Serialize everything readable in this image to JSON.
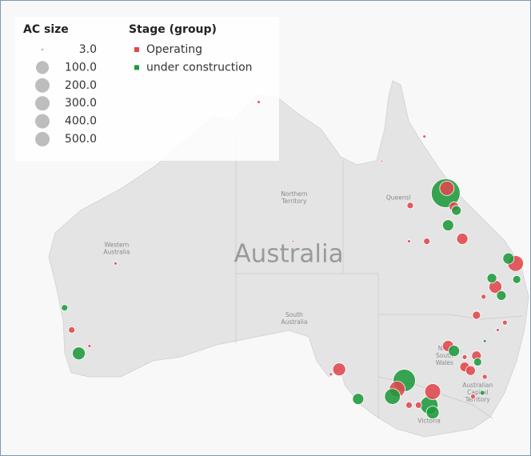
{
  "legend": {
    "size_title": "AC size",
    "sizes": [
      {
        "value": 3,
        "label": "3.0"
      },
      {
        "value": 100,
        "label": "100.0"
      },
      {
        "value": 200,
        "label": "200.0"
      },
      {
        "value": 300,
        "label": "300.0"
      },
      {
        "value": 400,
        "label": "400.0"
      },
      {
        "value": 500,
        "label": "500.0"
      }
    ],
    "stage_title": "Stage (group)",
    "stages": [
      {
        "name": "Operating",
        "color": "#e0474c"
      },
      {
        "name": "under construction",
        "color": "#1f9a3c"
      }
    ]
  },
  "map_label": "Australia",
  "places": [
    {
      "lines": [
        "Western",
        "Australia"
      ],
      "lon": 118.9,
      "lat": -24.0
    },
    {
      "lines": [
        "Northern",
        "Territory"
      ],
      "lon": 133.9,
      "lat": -19.9
    },
    {
      "lines": [
        "Queensl"
      ],
      "lon": 142.7,
      "lat": -19.9
    },
    {
      "lines": [
        "South",
        "Australia"
      ],
      "lon": 133.9,
      "lat": -29.7
    },
    {
      "lines": [
        "New",
        "South",
        "Wales"
      ],
      "lon": 146.6,
      "lat": -32.7
    },
    {
      "lines": [
        "Australian",
        "Capital",
        "Territory"
      ],
      "lon": 149.4,
      "lat": -35.7
    },
    {
      "lines": [
        "Victoria"
      ],
      "lon": 145.3,
      "lat": -38.0
    }
  ],
  "points": [
    {
      "lon": 146.7,
      "lat": -19.5,
      "size": 500,
      "stage": "under construction"
    },
    {
      "lon": 146.8,
      "lat": -19.1,
      "size": 125,
      "stage": "Operating"
    },
    {
      "lon": 147.4,
      "lat": -20.6,
      "size": 56,
      "stage": "Operating"
    },
    {
      "lon": 147.6,
      "lat": -20.9,
      "size": 56,
      "stage": "under construction"
    },
    {
      "lon": 146.9,
      "lat": -22.1,
      "size": 76,
      "stage": "under construction"
    },
    {
      "lon": 148.1,
      "lat": -23.2,
      "size": 76,
      "stage": "Operating"
    },
    {
      "lon": 143.7,
      "lat": -20.5,
      "size": 25,
      "stage": "Operating"
    },
    {
      "lon": 145.1,
      "lat": -23.4,
      "size": 25,
      "stage": "Operating"
    },
    {
      "lon": 143.6,
      "lat": -23.4,
      "size": 6,
      "stage": "Operating"
    },
    {
      "lon": 144.9,
      "lat": -14.9,
      "size": 6,
      "stage": "Operating"
    },
    {
      "lon": 152.0,
      "lat": -24.8,
      "size": 76,
      "stage": "under construction"
    },
    {
      "lon": 152.6,
      "lat": -25.2,
      "size": 150,
      "stage": "Operating"
    },
    {
      "lon": 150.6,
      "lat": -26.4,
      "size": 56,
      "stage": "under construction"
    },
    {
      "lon": 150.9,
      "lat": -27.1,
      "size": 100,
      "stage": "Operating"
    },
    {
      "lon": 151.4,
      "lat": -27.8,
      "size": 56,
      "stage": "under construction"
    },
    {
      "lon": 152.7,
      "lat": -26.5,
      "size": 39,
      "stage": "under construction"
    },
    {
      "lon": 149.9,
      "lat": -27.9,
      "size": 14,
      "stage": "Operating"
    },
    {
      "lon": 149.3,
      "lat": -29.4,
      "size": 39,
      "stage": "Operating"
    },
    {
      "lon": 151.7,
      "lat": -30.0,
      "size": 14,
      "stage": "Operating"
    },
    {
      "lon": 150.0,
      "lat": -31.5,
      "size": 6,
      "stage": "under construction"
    },
    {
      "lon": 151.1,
      "lat": -30.6,
      "size": 6,
      "stage": "Operating"
    },
    {
      "lon": 146.9,
      "lat": -31.9,
      "size": 76,
      "stage": "Operating"
    },
    {
      "lon": 147.4,
      "lat": -32.3,
      "size": 76,
      "stage": "under construction"
    },
    {
      "lon": 149.3,
      "lat": -32.7,
      "size": 56,
      "stage": "Operating"
    },
    {
      "lon": 149.4,
      "lat": -33.2,
      "size": 39,
      "stage": "under construction"
    },
    {
      "lon": 148.3,
      "lat": -33.6,
      "size": 56,
      "stage": "Operating"
    },
    {
      "lon": 148.8,
      "lat": -33.9,
      "size": 56,
      "stage": "Operating"
    },
    {
      "lon": 148.3,
      "lat": -32.8,
      "size": 14,
      "stage": "Operating"
    },
    {
      "lon": 150.0,
      "lat": -34.4,
      "size": 14,
      "stage": "Operating"
    },
    {
      "lon": 149.8,
      "lat": -35.7,
      "size": 14,
      "stage": "under construction"
    },
    {
      "lon": 149.0,
      "lat": -36.0,
      "size": 14,
      "stage": "Operating"
    },
    {
      "lon": 143.2,
      "lat": -34.7,
      "size": 300,
      "stage": "under construction"
    },
    {
      "lon": 142.6,
      "lat": -35.4,
      "size": 150,
      "stage": "Operating"
    },
    {
      "lon": 142.2,
      "lat": -36.0,
      "size": 150,
      "stage": "under construction"
    },
    {
      "lon": 145.6,
      "lat": -35.6,
      "size": 150,
      "stage": "Operating"
    },
    {
      "lon": 144.4,
      "lat": -36.7,
      "size": 25,
      "stage": "Operating"
    },
    {
      "lon": 143.6,
      "lat": -36.7,
      "size": 25,
      "stage": "Operating"
    },
    {
      "lon": 145.3,
      "lat": -36.7,
      "size": 190,
      "stage": "under construction"
    },
    {
      "lon": 145.6,
      "lat": -37.3,
      "size": 100,
      "stage": "under construction"
    },
    {
      "lon": 139.3,
      "lat": -36.2,
      "size": 76,
      "stage": "under construction"
    },
    {
      "lon": 137.7,
      "lat": -33.8,
      "size": 100,
      "stage": "Operating"
    },
    {
      "lon": 137.0,
      "lat": -34.2,
      "size": 6,
      "stage": "Operating"
    },
    {
      "lon": 118.8,
      "lat": -25.2,
      "size": 6,
      "stage": "Operating"
    },
    {
      "lon": 114.5,
      "lat": -28.8,
      "size": 25,
      "stage": "under construction"
    },
    {
      "lon": 115.1,
      "lat": -30.6,
      "size": 25,
      "stage": "Operating"
    },
    {
      "lon": 116.6,
      "lat": -31.9,
      "size": 6,
      "stage": "Operating"
    },
    {
      "lon": 115.7,
      "lat": -32.5,
      "size": 100,
      "stage": "under construction"
    },
    {
      "lon": 130.9,
      "lat": -12.1,
      "size": 6,
      "stage": "Operating"
    },
    {
      "lon": 141.3,
      "lat": -16.9,
      "size": 3,
      "stage": "Operating"
    },
    {
      "lon": 133.8,
      "lat": -23.4,
      "size": 3,
      "stage": "Operating"
    }
  ]
}
